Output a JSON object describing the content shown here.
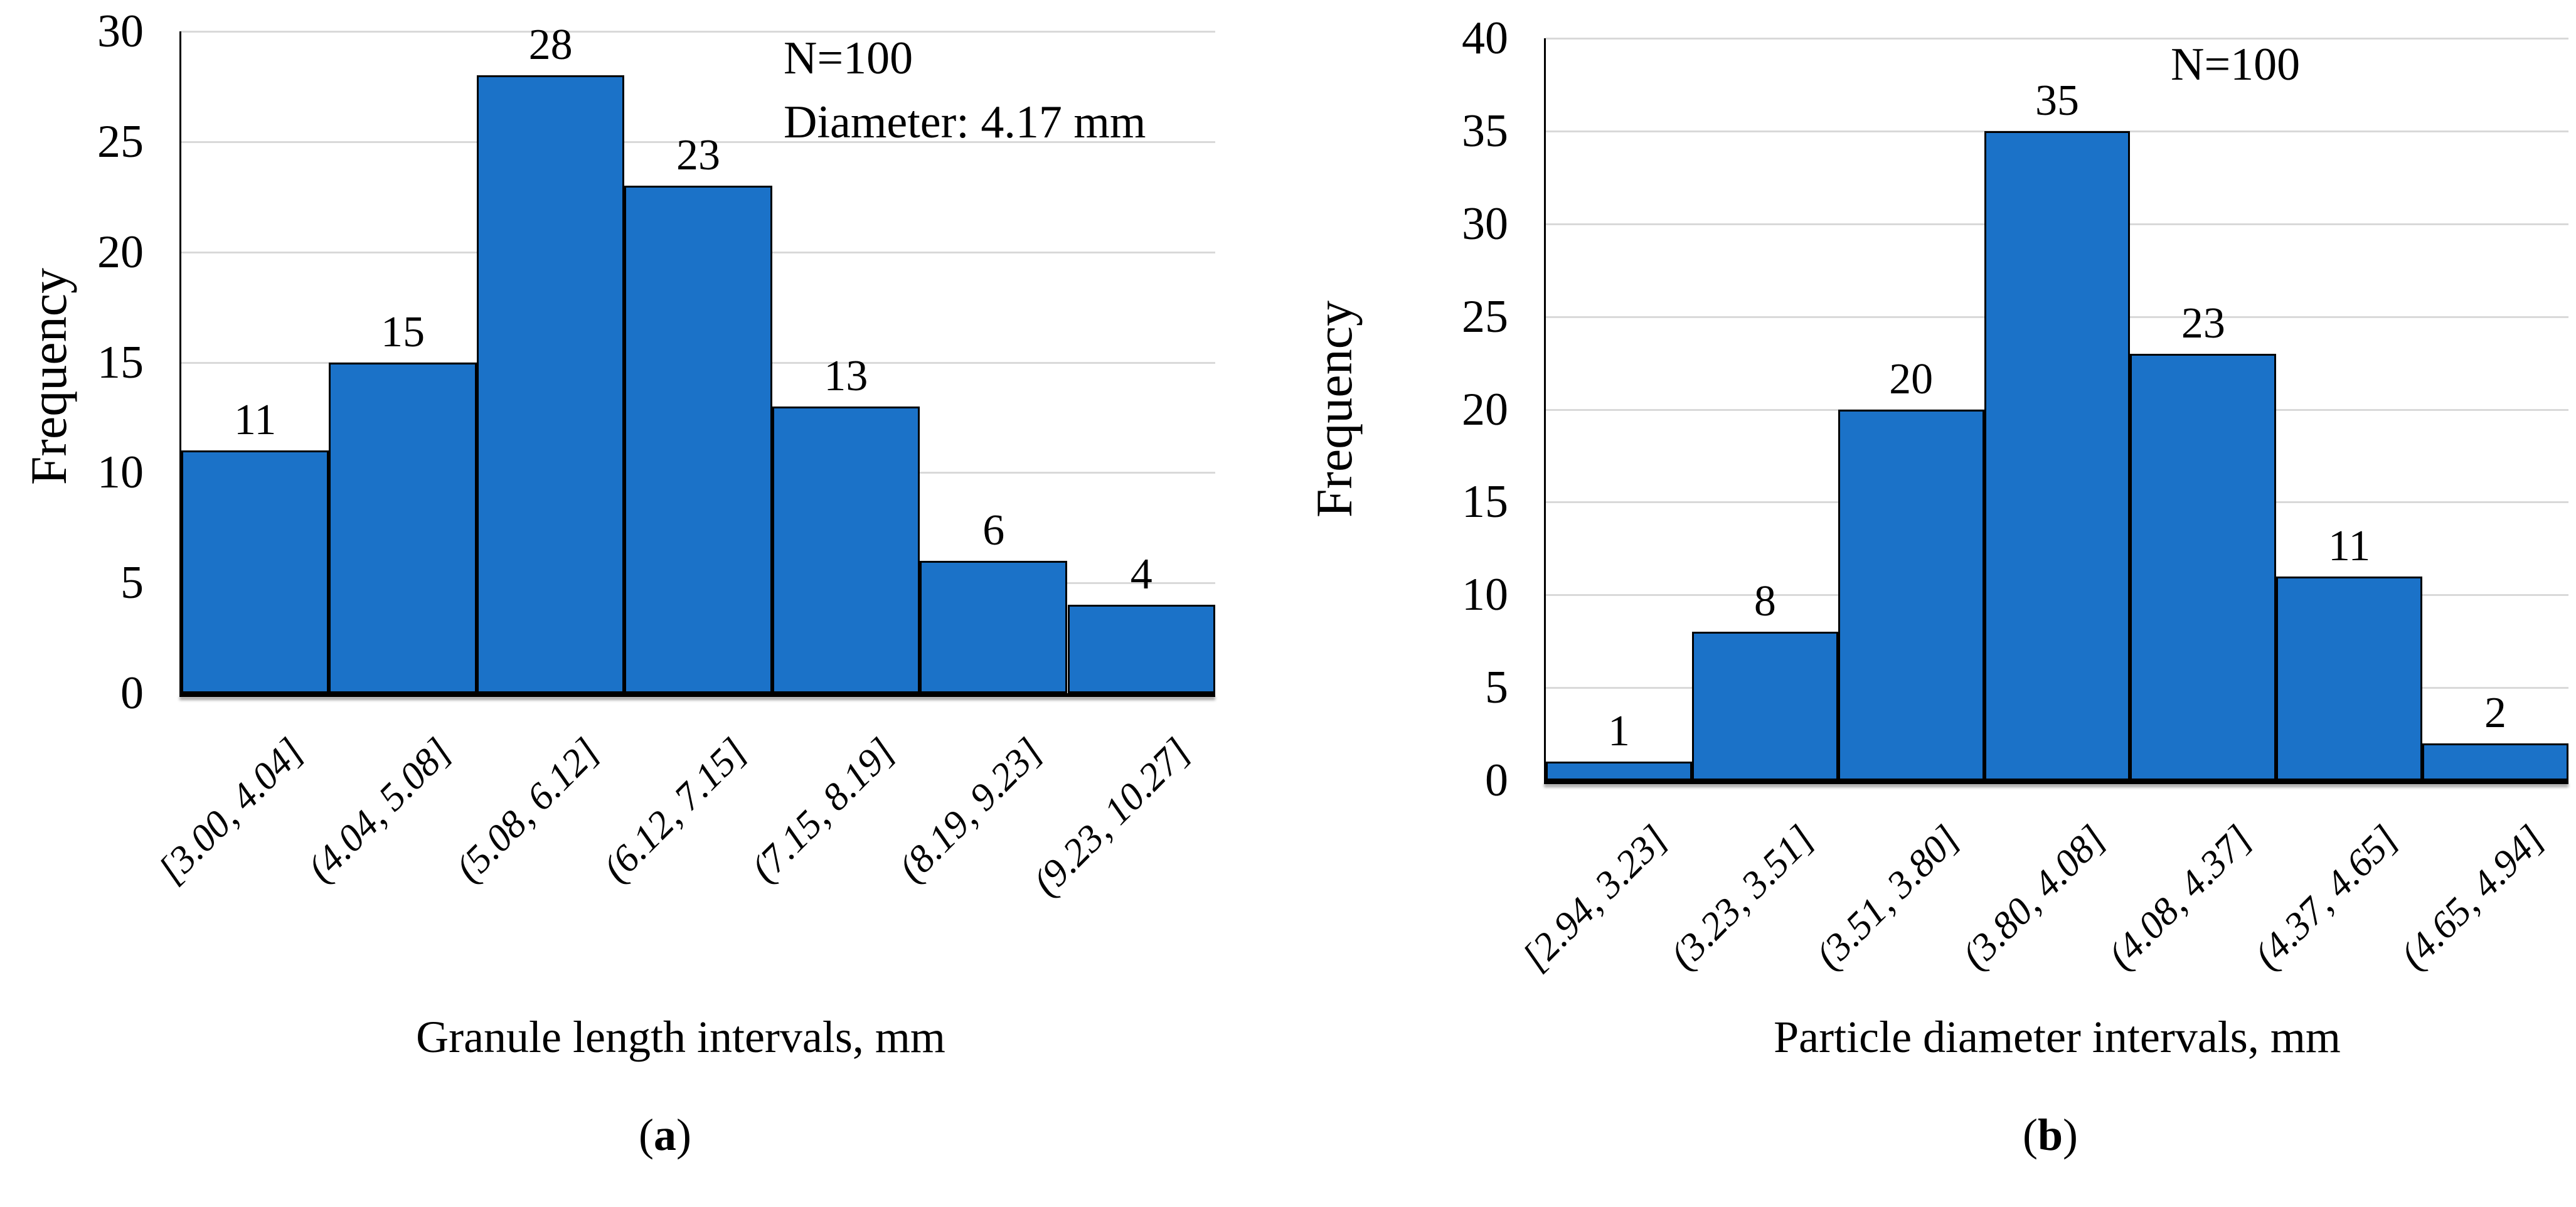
{
  "styles": {
    "bar_fill": "#1B72C8",
    "bar_border": "#000000",
    "gridline_color": "#D9D9D9",
    "axis_color": "#000000",
    "text_color": "#000000",
    "background": "#FFFFFF"
  },
  "chart_data": [
    {
      "type": "bar",
      "panel": "a",
      "ylabel": "Frequency",
      "xlabel": "Granule length intervals, mm",
      "annotations": [
        "N=100",
        "Diameter: 4.17 mm"
      ],
      "categories": [
        "[3.00, 4.04]",
        "(4.04, 5.08]",
        "(5.08, 6.12]",
        "(6.12, 7.15]",
        "(7.15, 8.19]",
        "(8.19, 9.23]",
        "(9.23, 10.27]"
      ],
      "values": [
        11,
        15,
        28,
        23,
        13,
        6,
        4
      ],
      "ylim": [
        0,
        30
      ],
      "yticks": [
        0,
        5,
        10,
        15,
        20,
        25,
        30
      ],
      "grid": true,
      "legend": null,
      "caption": {
        "open": "(",
        "letter": "a",
        "close": ")"
      }
    },
    {
      "type": "bar",
      "panel": "b",
      "ylabel": "Frequency",
      "xlabel": "Particle diameter intervals, mm",
      "annotations": [
        "N=100"
      ],
      "categories": [
        "[2.94, 3.23]",
        "(3.23, 3.51]",
        "(3.51, 3.80]",
        "(3.80, 4.08]",
        "(4.08, 4.37]",
        "(4.37, 4.65]",
        "(4.65, 4.94]"
      ],
      "values": [
        1,
        8,
        20,
        35,
        23,
        11,
        2
      ],
      "ylim": [
        0,
        40
      ],
      "yticks": [
        0,
        5,
        10,
        15,
        20,
        25,
        30,
        35,
        40
      ],
      "grid": true,
      "legend": null,
      "caption": {
        "open": "(",
        "letter": "b",
        "close": ")"
      }
    }
  ]
}
